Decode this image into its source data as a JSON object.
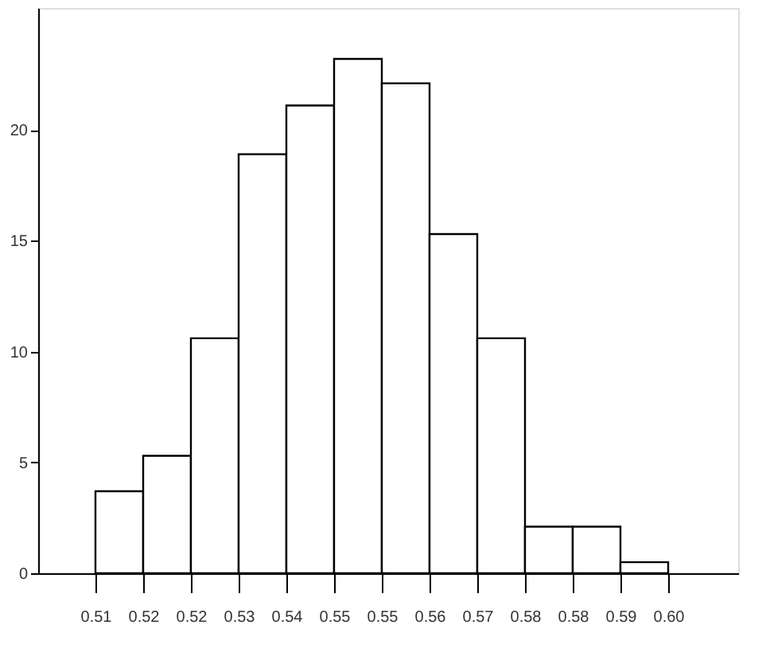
{
  "chart_data": {
    "type": "histogram",
    "bins": [
      0.51,
      0.5175,
      0.525,
      0.5325,
      0.54,
      0.5475,
      0.555,
      0.5625,
      0.57,
      0.5775,
      0.585,
      0.5925,
      0.6
    ],
    "values": [
      3.7,
      5.3,
      10.6,
      18.9,
      21.1,
      23.2,
      22.1,
      15.3,
      10.6,
      2.1,
      2.1,
      0.5
    ],
    "color": "#ffffff",
    "xlim": [
      0.501,
      0.611
    ],
    "ylim": [
      0,
      25.5
    ],
    "xticks": [
      0.51,
      {
        "value": 0.5175,
        "label": "0.52"
      },
      {
        "value": 0.525,
        "label": "0.52"
      },
      {
        "value": 0.5325,
        "label": "0.53"
      },
      0.54,
      {
        "value": 0.5475,
        "label": "0.55"
      },
      {
        "value": 0.555,
        "label": "0.55"
      },
      {
        "value": 0.5625,
        "label": "0.56"
      },
      0.57,
      {
        "value": 0.5775,
        "label": "0.58"
      },
      {
        "value": 0.585,
        "label": "0.58"
      },
      {
        "value": 0.5925,
        "label": "0.59"
      },
      {
        "value": 0.6,
        "label": "0.60"
      }
    ],
    "yticks": [
      0,
      5,
      10,
      15,
      20
    ],
    "grid": false
  }
}
